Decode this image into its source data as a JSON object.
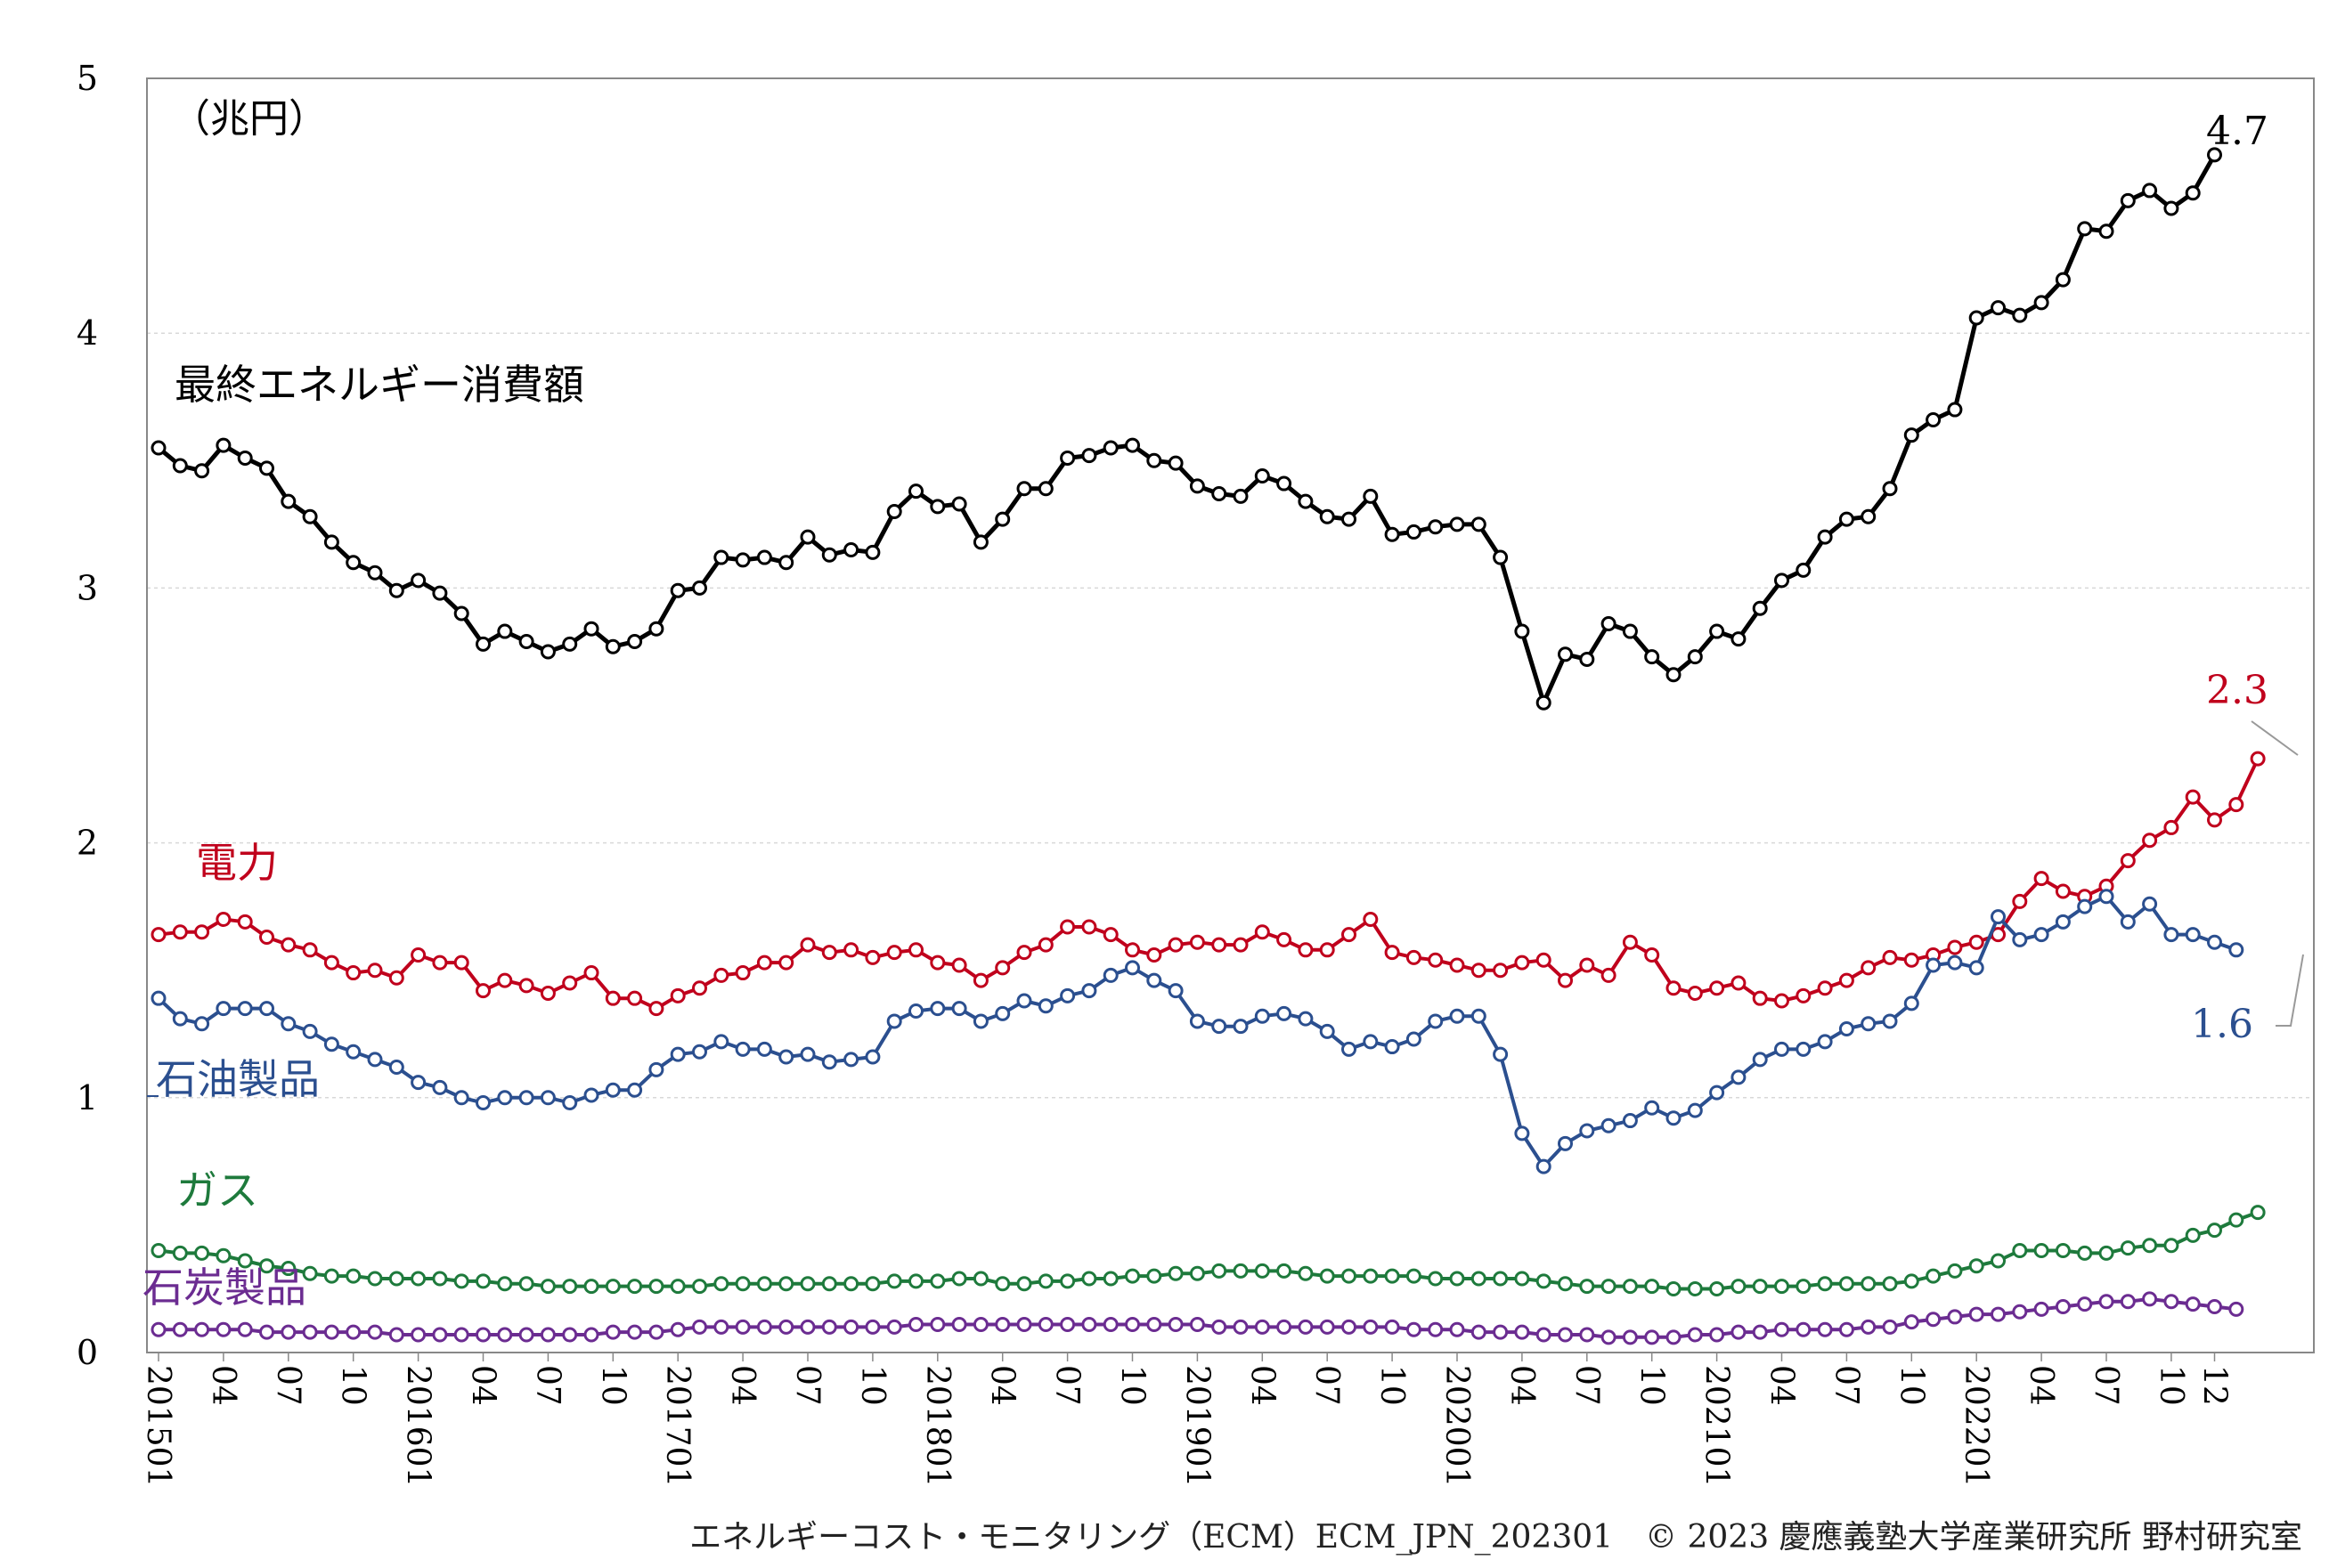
{
  "unit_label": "（兆円）",
  "footer": "エネルギーコスト・モニタリング（ECM）ECM_JPN_202301　© 2023 慶應義塾大学産業研究所 野村研究室",
  "chart_data": {
    "type": "line",
    "title": "",
    "xlabel": "",
    "ylabel": "（兆円）",
    "ylim": [
      0,
      5
    ],
    "yticks": [
      0,
      1,
      2,
      3,
      4,
      5
    ],
    "grid": true,
    "start": "2015-01",
    "end": "2022-12",
    "xtick_labels": [
      "201501",
      "04",
      "07",
      "10",
      "201601",
      "04",
      "07",
      "10",
      "201701",
      "04",
      "07",
      "10",
      "201801",
      "04",
      "07",
      "10",
      "201901",
      "04",
      "07",
      "10",
      "202001",
      "04",
      "07",
      "10",
      "202101",
      "04",
      "07",
      "10",
      "202201",
      "04",
      "07",
      "10",
      "12"
    ],
    "series": [
      {
        "name": "最終エネルギー消費額",
        "color": "#000000",
        "end_label": "4.7",
        "values": [
          3.55,
          3.48,
          3.46,
          3.56,
          3.51,
          3.47,
          3.34,
          3.28,
          3.18,
          3.1,
          3.06,
          2.99,
          3.03,
          2.98,
          2.9,
          2.78,
          2.83,
          2.79,
          2.75,
          2.78,
          2.84,
          2.77,
          2.79,
          2.84,
          2.99,
          3.0,
          3.12,
          3.11,
          3.12,
          3.1,
          3.2,
          3.13,
          3.15,
          3.14,
          3.3,
          3.38,
          3.32,
          3.33,
          3.18,
          3.27,
          3.39,
          3.39,
          3.51,
          3.52,
          3.55,
          3.56,
          3.5,
          3.49,
          3.4,
          3.37,
          3.36,
          3.44,
          3.41,
          3.34,
          3.28,
          3.27,
          3.36,
          3.21,
          3.22,
          3.24,
          3.25,
          3.25,
          3.12,
          2.83,
          2.55,
          2.74,
          2.72,
          2.86,
          2.83,
          2.73,
          2.66,
          2.73,
          2.83,
          2.8,
          2.92,
          3.03,
          3.07,
          3.2,
          3.27,
          3.28,
          3.39,
          3.6,
          3.66,
          3.7,
          4.06,
          4.1,
          4.07,
          4.12,
          4.21,
          4.41,
          4.4,
          4.52,
          4.56,
          4.49,
          4.55,
          4.7
        ]
      },
      {
        "name": "電力",
        "color": "#c0001c",
        "end_label": "2.3",
        "values": [
          1.64,
          1.65,
          1.65,
          1.7,
          1.69,
          1.63,
          1.6,
          1.58,
          1.53,
          1.49,
          1.5,
          1.47,
          1.56,
          1.53,
          1.53,
          1.42,
          1.46,
          1.44,
          1.41,
          1.45,
          1.49,
          1.39,
          1.39,
          1.35,
          1.4,
          1.43,
          1.48,
          1.49,
          1.53,
          1.53,
          1.6,
          1.57,
          1.58,
          1.55,
          1.57,
          1.58,
          1.53,
          1.52,
          1.46,
          1.51,
          1.57,
          1.6,
          1.67,
          1.67,
          1.64,
          1.58,
          1.56,
          1.6,
          1.61,
          1.6,
          1.6,
          1.65,
          1.62,
          1.58,
          1.58,
          1.64,
          1.7,
          1.57,
          1.55,
          1.54,
          1.52,
          1.5,
          1.5,
          1.53,
          1.54,
          1.46,
          1.52,
          1.48,
          1.61,
          1.56,
          1.43,
          1.41,
          1.43,
          1.45,
          1.39,
          1.38,
          1.4,
          1.43,
          1.46,
          1.51,
          1.55,
          1.54,
          1.56,
          1.59,
          1.61,
          1.64,
          1.77,
          1.86,
          1.81,
          1.79,
          1.83,
          1.93,
          2.01,
          2.06,
          2.18,
          2.09,
          2.15,
          2.33
        ]
      },
      {
        "name": "石油製品",
        "color": "#2b4f8f",
        "end_label": "1.6",
        "values": [
          1.39,
          1.31,
          1.29,
          1.35,
          1.35,
          1.35,
          1.29,
          1.26,
          1.21,
          1.18,
          1.15,
          1.12,
          1.06,
          1.04,
          1.0,
          0.98,
          1.0,
          1.0,
          1.0,
          0.98,
          1.01,
          1.03,
          1.03,
          1.11,
          1.17,
          1.18,
          1.22,
          1.19,
          1.19,
          1.16,
          1.17,
          1.14,
          1.15,
          1.16,
          1.3,
          1.34,
          1.35,
          1.35,
          1.3,
          1.33,
          1.38,
          1.36,
          1.4,
          1.42,
          1.48,
          1.51,
          1.46,
          1.42,
          1.3,
          1.28,
          1.28,
          1.32,
          1.33,
          1.31,
          1.26,
          1.19,
          1.22,
          1.2,
          1.23,
          1.3,
          1.32,
          1.32,
          1.17,
          0.86,
          0.73,
          0.82,
          0.87,
          0.89,
          0.91,
          0.96,
          0.92,
          0.95,
          1.02,
          1.08,
          1.15,
          1.19,
          1.19,
          1.22,
          1.27,
          1.29,
          1.3,
          1.37,
          1.52,
          1.53,
          1.51,
          1.71,
          1.62,
          1.64,
          1.69,
          1.75,
          1.79,
          1.69,
          1.76,
          1.64,
          1.64,
          1.61,
          1.58
        ]
      },
      {
        "name": "ガス",
        "color": "#1e7a3c",
        "end_label": "",
        "values": [
          0.4,
          0.39,
          0.39,
          0.38,
          0.36,
          0.34,
          0.33,
          0.31,
          0.3,
          0.3,
          0.29,
          0.29,
          0.29,
          0.29,
          0.28,
          0.28,
          0.27,
          0.27,
          0.26,
          0.26,
          0.26,
          0.26,
          0.26,
          0.26,
          0.26,
          0.26,
          0.27,
          0.27,
          0.27,
          0.27,
          0.27,
          0.27,
          0.27,
          0.27,
          0.28,
          0.28,
          0.28,
          0.29,
          0.29,
          0.27,
          0.27,
          0.28,
          0.28,
          0.29,
          0.29,
          0.3,
          0.3,
          0.31,
          0.31,
          0.32,
          0.32,
          0.32,
          0.32,
          0.31,
          0.3,
          0.3,
          0.3,
          0.3,
          0.3,
          0.29,
          0.29,
          0.29,
          0.29,
          0.29,
          0.28,
          0.27,
          0.26,
          0.26,
          0.26,
          0.26,
          0.25,
          0.25,
          0.25,
          0.26,
          0.26,
          0.26,
          0.26,
          0.27,
          0.27,
          0.27,
          0.27,
          0.28,
          0.3,
          0.32,
          0.34,
          0.36,
          0.4,
          0.4,
          0.4,
          0.39,
          0.39,
          0.41,
          0.42,
          0.42,
          0.46,
          0.48,
          0.52,
          0.55
        ]
      },
      {
        "name": "石炭製品",
        "color": "#6b2c91",
        "end_label": "",
        "values": [
          0.09,
          0.09,
          0.09,
          0.09,
          0.09,
          0.08,
          0.08,
          0.08,
          0.08,
          0.08,
          0.08,
          0.07,
          0.07,
          0.07,
          0.07,
          0.07,
          0.07,
          0.07,
          0.07,
          0.07,
          0.07,
          0.08,
          0.08,
          0.08,
          0.09,
          0.1,
          0.1,
          0.1,
          0.1,
          0.1,
          0.1,
          0.1,
          0.1,
          0.1,
          0.1,
          0.11,
          0.11,
          0.11,
          0.11,
          0.11,
          0.11,
          0.11,
          0.11,
          0.11,
          0.11,
          0.11,
          0.11,
          0.11,
          0.11,
          0.1,
          0.1,
          0.1,
          0.1,
          0.1,
          0.1,
          0.1,
          0.1,
          0.1,
          0.09,
          0.09,
          0.09,
          0.08,
          0.08,
          0.08,
          0.07,
          0.07,
          0.07,
          0.06,
          0.06,
          0.06,
          0.06,
          0.07,
          0.07,
          0.08,
          0.08,
          0.09,
          0.09,
          0.09,
          0.09,
          0.1,
          0.1,
          0.12,
          0.13,
          0.14,
          0.15,
          0.15,
          0.16,
          0.17,
          0.18,
          0.19,
          0.2,
          0.2,
          0.21,
          0.2,
          0.19,
          0.18,
          0.17
        ]
      }
    ]
  }
}
